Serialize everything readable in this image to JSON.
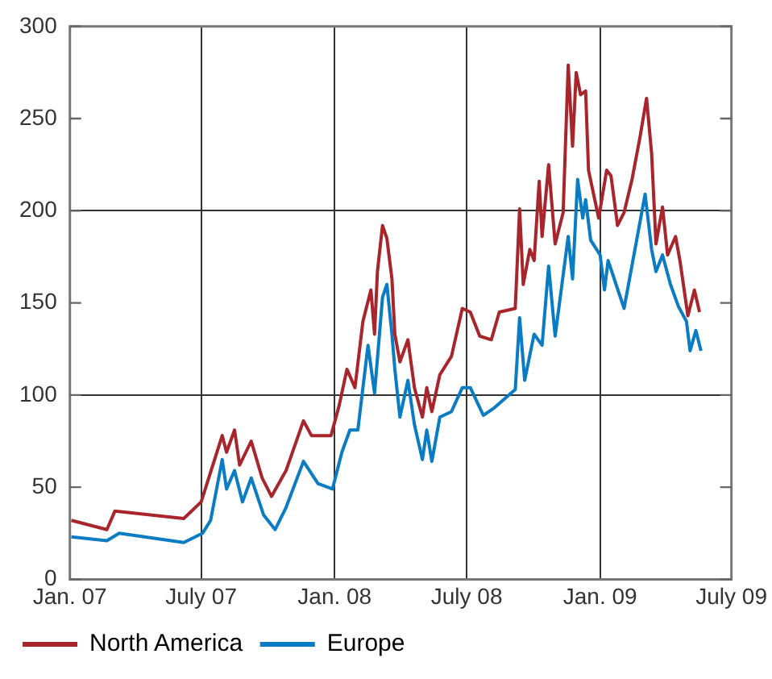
{
  "chart_data": {
    "type": "line",
    "xlim": [
      "2007-01-01",
      "2009-07-01"
    ],
    "xticks": [
      {
        "value": "2007-01-01",
        "label": "Jan. 07"
      },
      {
        "value": "2007-07-01",
        "label": "July 07"
      },
      {
        "value": "2008-01-01",
        "label": "Jan. 08"
      },
      {
        "value": "2008-07-01",
        "label": "July 08"
      },
      {
        "value": "2009-01-01",
        "label": "Jan. 09"
      },
      {
        "value": "2009-07-01",
        "label": "July 09"
      }
    ],
    "ylim": [
      0,
      300
    ],
    "yticks": [
      0,
      50,
      100,
      150,
      200,
      250,
      300
    ],
    "grid": true,
    "legend": "bottom",
    "marker": "none",
    "line_style": "solid",
    "series": [
      {
        "name": "North America",
        "color": "#a8252c",
        "x": [
          "2007-01-03",
          "2007-02-21",
          "2007-03-04",
          "2007-06-07",
          "2007-07-01",
          "2007-07-30",
          "2007-08-05",
          "2007-08-16",
          "2007-08-23",
          "2007-09-08",
          "2007-09-23",
          "2007-10-06",
          "2007-10-26",
          "2007-11-19",
          "2007-11-30",
          "2007-12-27",
          "2008-01-07",
          "2008-01-18",
          "2008-01-29",
          "2008-02-09",
          "2008-02-20",
          "2008-02-25",
          "2008-02-29",
          "2008-03-07",
          "2008-03-13",
          "2008-03-20",
          "2008-03-24",
          "2008-03-31",
          "2008-04-11",
          "2008-04-20",
          "2008-05-01",
          "2008-05-07",
          "2008-05-14",
          "2008-05-25",
          "2008-06-10",
          "2008-06-25",
          "2008-07-06",
          "2008-07-19",
          "2008-08-04",
          "2008-08-15",
          "2008-09-06",
          "2008-09-12",
          "2008-09-17",
          "2008-09-26",
          "2008-10-02",
          "2008-10-09",
          "2008-10-13",
          "2008-10-22",
          "2008-10-31",
          "2008-11-11",
          "2008-11-18",
          "2008-11-24",
          "2008-11-29",
          "2008-12-05",
          "2008-12-12",
          "2008-12-16",
          "2008-12-30",
          "2009-01-10",
          "2009-01-16",
          "2009-01-25",
          "2009-02-03",
          "2009-02-14",
          "2009-02-25",
          "2009-03-06",
          "2009-03-13",
          "2009-03-19",
          "2009-03-28",
          "2009-04-04",
          "2009-04-15",
          "2009-04-21",
          "2009-05-02",
          "2009-05-11",
          "2009-05-18"
        ],
        "values": [
          32,
          27,
          37,
          33,
          42,
          78,
          69,
          81,
          62,
          75,
          55,
          45,
          59,
          86,
          78,
          78,
          94,
          114,
          104,
          140,
          157,
          133,
          167,
          192,
          185,
          163,
          133,
          118,
          130,
          104,
          88,
          104,
          91,
          111,
          121,
          147,
          145,
          132,
          130,
          145,
          147,
          201,
          160,
          179,
          173,
          216,
          186,
          225,
          182,
          199,
          279,
          235,
          275,
          263,
          265,
          222,
          196,
          222,
          219,
          192,
          199,
          217,
          240,
          261,
          231,
          182,
          202,
          176,
          186,
          173,
          143,
          157,
          145
        ]
      },
      {
        "name": "Europe",
        "color": "#0a7cc4",
        "x": [
          "2007-01-03",
          "2007-02-21",
          "2007-03-10",
          "2007-06-07",
          "2007-07-03",
          "2007-07-14",
          "2007-07-30",
          "2007-08-05",
          "2007-08-16",
          "2007-08-27",
          "2007-09-08",
          "2007-09-25",
          "2007-10-11",
          "2007-10-26",
          "2007-11-19",
          "2007-12-09",
          "2007-12-29",
          "2008-01-11",
          "2008-01-22",
          "2008-02-02",
          "2008-02-16",
          "2008-02-25",
          "2008-03-07",
          "2008-03-13",
          "2008-03-20",
          "2008-03-24",
          "2008-03-31",
          "2008-04-11",
          "2008-04-20",
          "2008-05-01",
          "2008-05-07",
          "2008-05-14",
          "2008-05-25",
          "2008-06-10",
          "2008-06-25",
          "2008-07-06",
          "2008-07-24",
          "2008-08-08",
          "2008-09-06",
          "2008-09-12",
          "2008-09-19",
          "2008-10-02",
          "2008-10-13",
          "2008-10-22",
          "2008-10-31",
          "2008-11-18",
          "2008-11-24",
          "2008-12-01",
          "2008-12-08",
          "2008-12-12",
          "2008-12-19",
          "2009-01-01",
          "2009-01-07",
          "2009-01-12",
          "2009-01-23",
          "2009-02-03",
          "2009-02-18",
          "2009-03-04",
          "2009-03-13",
          "2009-03-19",
          "2009-03-28",
          "2009-04-08",
          "2009-04-19",
          "2009-04-30",
          "2009-05-05",
          "2009-05-13",
          "2009-05-20"
        ],
        "values": [
          23,
          21,
          25,
          20,
          25,
          32,
          65,
          49,
          59,
          42,
          55,
          35,
          27,
          39,
          64,
          52,
          49,
          69,
          81,
          81,
          127,
          101,
          153,
          160,
          133,
          114,
          88,
          108,
          84,
          65,
          81,
          64,
          88,
          91,
          104,
          104,
          89,
          93,
          103,
          142,
          108,
          133,
          127,
          170,
          132,
          186,
          163,
          217,
          196,
          206,
          184,
          176,
          157,
          173,
          160,
          147,
          179,
          209,
          179,
          167,
          176,
          160,
          148,
          140,
          124,
          135,
          124
        ]
      }
    ]
  }
}
